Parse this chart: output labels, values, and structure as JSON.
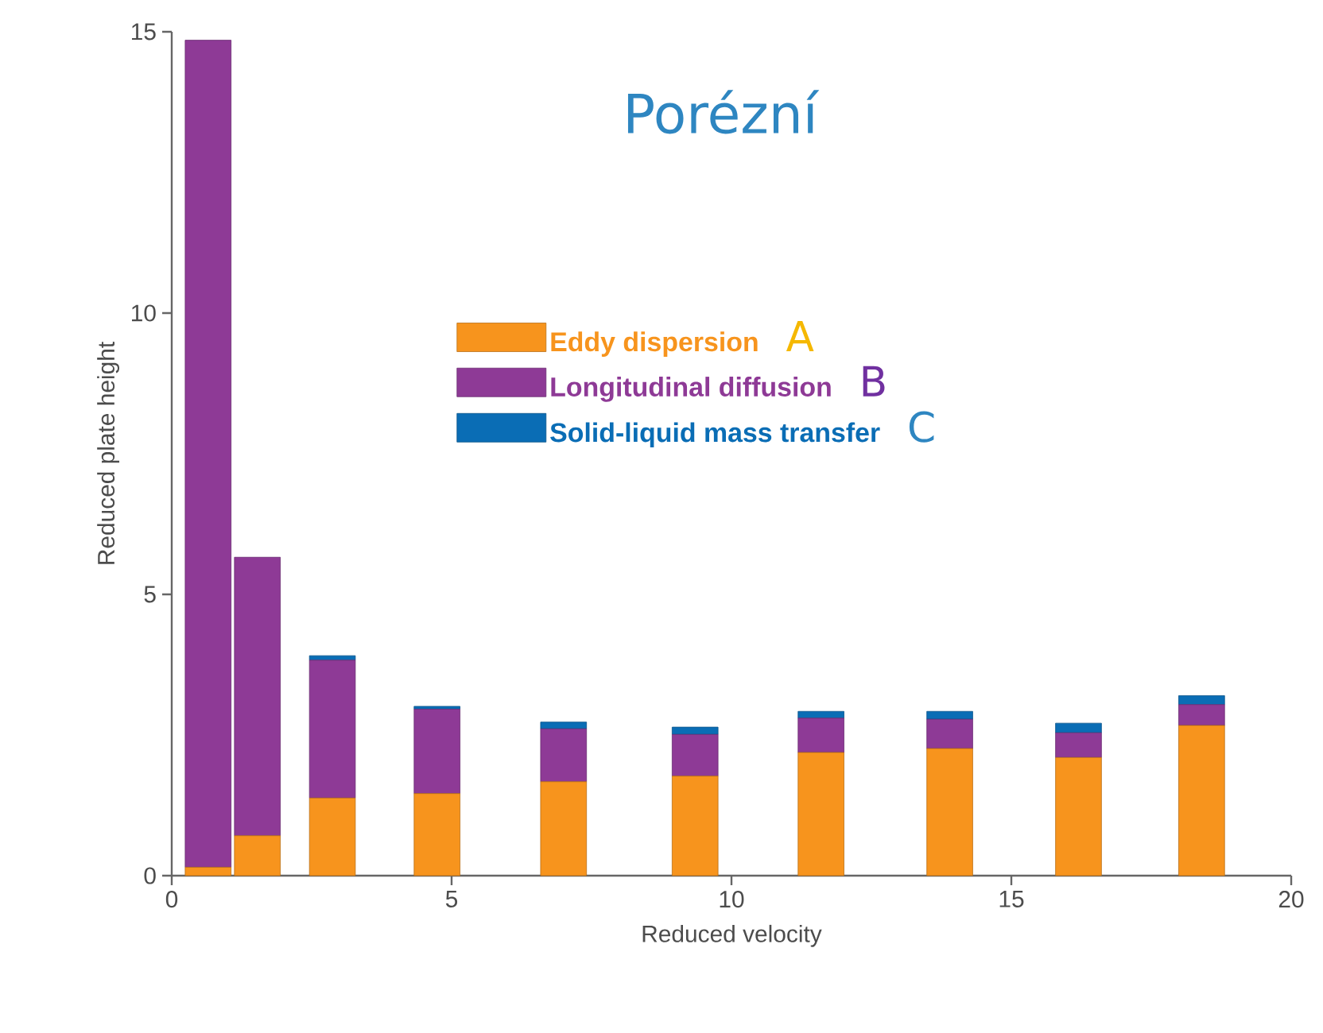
{
  "chart_data": {
    "type": "bar",
    "stacked": true,
    "title": "Porézní",
    "xlabel": "Reduced velocity",
    "ylabel": "Reduced plate height",
    "x": [
      0.65,
      1.53,
      2.87,
      4.74,
      7.0,
      9.35,
      11.6,
      13.9,
      16.2,
      18.4
    ],
    "series": [
      {
        "name": "Eddy dispersion",
        "color": "#f7941d",
        "values": [
          0.15,
          0.71,
          1.38,
          1.46,
          1.67,
          1.77,
          2.19,
          2.26,
          2.1,
          2.67
        ]
      },
      {
        "name": "Longitudinal diffusion",
        "color": "#8e3a96",
        "values": [
          14.7,
          4.95,
          2.45,
          1.5,
          0.94,
          0.74,
          0.61,
          0.52,
          0.44,
          0.37
        ]
      },
      {
        "name": "Solid-liquid mass transfer",
        "color": "#0a6db5",
        "values": [
          0,
          0,
          0.08,
          0.05,
          0.12,
          0.13,
          0.12,
          0.14,
          0.17,
          0.16
        ]
      }
    ],
    "annotations": [
      "A",
      "B",
      "C"
    ],
    "xlim": [
      0,
      20
    ],
    "ylim": [
      0,
      15
    ],
    "xticks": [
      0,
      5,
      10,
      15,
      20
    ],
    "yticks": [
      0,
      5,
      10,
      15
    ],
    "grid": false,
    "legend": "top left"
  }
}
